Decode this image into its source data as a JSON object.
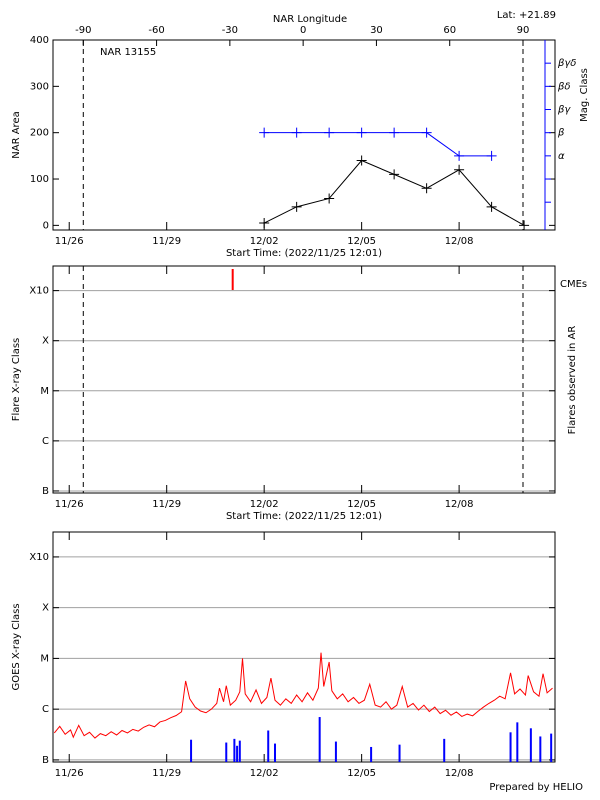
{
  "credit": "Prepared by HELIO",
  "chart_data": [
    {
      "type": "line",
      "title": "NAR 13155",
      "subtitle": "Lat: +21.89",
      "x2label": "NAR Longitude",
      "xlabel": "Start Time: (2022/11/25 12:01)",
      "ylabel": "NAR Area",
      "y2label": "Mag. Class",
      "xlim": [
        "11/25 12:01",
        "12/10 22:50"
      ],
      "xticks": [
        "11/26",
        "11/29",
        "12/02",
        "12/05",
        "12/08"
      ],
      "x2lim": [
        -102.4,
        103.1
      ],
      "x2ticks": [
        -90,
        -60,
        -30,
        0,
        30,
        60,
        90
      ],
      "ylim": [
        -10,
        400
      ],
      "yticks": [
        0,
        100,
        200,
        300,
        400
      ],
      "y2lim": [
        -10,
        400
      ],
      "y2color": "#0000ff",
      "y2ticks": [
        {
          "value": 50,
          "label": null
        },
        {
          "value": 100,
          "label": null
        },
        {
          "value": 150,
          "label": "α"
        },
        {
          "value": 200,
          "label": "β"
        },
        {
          "value": 250,
          "label": "βγ"
        },
        {
          "value": 300,
          "label": "βδ"
        },
        {
          "value": 350,
          "label": "βγδ"
        }
      ],
      "series": [
        {
          "color": "#000000",
          "x": [
            "12/02",
            "12/03",
            "12/04",
            "12/05",
            "12/06",
            "12/07",
            "12/08",
            "12/09",
            "12/10"
          ],
          "values": [
            5,
            40,
            58,
            140,
            110,
            80,
            120,
            40,
            0
          ]
        },
        {
          "color": "#0000ff",
          "axis": "y2",
          "x": [
            "12/02",
            "12/03",
            "12/04",
            "12/05",
            "12/06",
            "12/07",
            "12/08",
            "12/09"
          ],
          "values": [
            200,
            200,
            200,
            200,
            200,
            200,
            150,
            150
          ]
        }
      ]
    },
    {
      "type": "flares",
      "xlabel": "Start Time: (2022/11/25 12:01)",
      "ylabel": "Flare X-ray Class",
      "y2label": "Flares observed in AR",
      "xlim": [
        "11/25 12:01",
        "12/10 22:50"
      ],
      "xticks": [
        "11/26",
        "11/29",
        "12/02",
        "12/05",
        "12/08"
      ],
      "ylim": [
        9.1e-08,
        0.0031
      ],
      "log_scale": true,
      "grid": true,
      "yticks": [
        {
          "value": 1e-07,
          "label": "B"
        },
        {
          "value": 1e-06,
          "label": "C"
        },
        {
          "value": 1e-05,
          "label": "M"
        },
        {
          "value": 0.0001,
          "label": "X"
        },
        {
          "value": 0.001,
          "label": "X10"
        }
      ],
      "series": [
        {
          "name": "CMEs",
          "color": "#ff0000",
          "x": [
            "12/01 00:45"
          ]
        }
      ]
    },
    {
      "type": "timeseries",
      "ylabel": "GOES X-ray Class",
      "xlim": [
        "11/25 12:01",
        "12/10 22:50"
      ],
      "xticks": [
        "11/26",
        "11/29",
        "12/02",
        "12/05",
        "12/08"
      ],
      "ylim": [
        9.1e-08,
        0.0031
      ],
      "log_scale": true,
      "grid": true,
      "yticks": [
        {
          "value": 1e-07,
          "label": "B"
        },
        {
          "value": 1e-06,
          "label": "C"
        },
        {
          "value": 1e-05,
          "label": "M"
        },
        {
          "value": 0.0001,
          "label": "X"
        },
        {
          "value": 0.001,
          "label": "X10"
        }
      ],
      "series": [
        {
          "style": "line",
          "color": "#ff0000",
          "x": [
            "11/25 13:00",
            "11/25 17:00",
            "11/25 21:00",
            "11/26 01:00",
            "11/26 03:00",
            "11/26 07:00",
            "11/26 11:00",
            "11/26 15:00",
            "11/26 19:00",
            "11/26 23:00",
            "11/27 03:00",
            "11/27 07:00",
            "11/27 11:00",
            "11/27 15:00",
            "11/27 19:00",
            "11/27 23:00",
            "11/28 03:00",
            "11/28 07:00",
            "11/28 11:00",
            "11/28 15:00",
            "11/28 19:00",
            "11/28 23:00",
            "11/29 03:00",
            "11/29 07:00",
            "11/29 11:00",
            "11/29 14:00",
            "11/29 17:00",
            "11/29 21:00",
            "11/30 01:00",
            "11/30 05:00",
            "11/30 09:00",
            "11/30 13:00",
            "11/30 15:00",
            "11/30 18:00",
            "11/30 20:00",
            "11/30 23:00",
            "12/01 03:00",
            "12/01 06:00",
            "12/01 08:00",
            "12/01 10:00",
            "12/01 14:00",
            "12/01 18:00",
            "12/01 22:00",
            "12/02 02:00",
            "12/02 05:00",
            "12/02 08:00",
            "12/02 12:00",
            "12/02 16:00",
            "12/02 20:00",
            "12/03 00:00",
            "12/03 04:00",
            "12/03 08:00",
            "12/03 12:00",
            "12/03 16:00",
            "12/03 18:00",
            "12/03 20:00",
            "12/04 00:00",
            "12/04 02:00",
            "12/04 06:00",
            "12/04 10:00",
            "12/04 14:00",
            "12/04 18:00",
            "12/04 22:00",
            "12/05 02:00",
            "12/05 06:00",
            "12/05 10:00",
            "12/05 14:00",
            "12/05 18:00",
            "12/05 22:00",
            "12/06 02:00",
            "12/06 06:00",
            "12/06 10:00",
            "12/06 14:00",
            "12/06 18:00",
            "12/06 22:00",
            "12/07 02:00",
            "12/07 06:00",
            "12/07 10:00",
            "12/07 14:00",
            "12/07 18:00",
            "12/07 22:00",
            "12/08 02:00",
            "12/08 06:00",
            "12/08 10:00",
            "12/08 14:00",
            "12/08 18:00",
            "12/08 22:00",
            "12/09 02:00",
            "12/09 06:00",
            "12/09 10:00",
            "12/09 14:00",
            "12/09 17:00",
            "12/09 21:00",
            "12/10 01:00",
            "12/10 03:00",
            "12/10 07:00",
            "12/10 11:00",
            "12/10 14:00",
            "12/10 17:00",
            "12/10 21:00"
          ],
          "values": [
            3.4e-07,
            4.6e-07,
            3.2e-07,
            3.9e-07,
            2.8e-07,
            4.8e-07,
            3e-07,
            3.5e-07,
            2.7e-07,
            3.3e-07,
            3e-07,
            3.6e-07,
            3.1e-07,
            3.8e-07,
            3.4e-07,
            4e-07,
            3.7e-07,
            4.4e-07,
            4.9e-07,
            4.5e-07,
            5.6e-07,
            6e-07,
            6.8e-07,
            7.5e-07,
            8.9e-07,
            3.6e-06,
            1.6e-06,
            1.1e-06,
            9.2e-07,
            8.5e-07,
            1e-06,
            1.3e-06,
            2.6e-06,
            1.4e-06,
            2.9e-06,
            1.2e-06,
            1.5e-06,
            2.2e-06,
            1e-05,
            2e-06,
            1.4e-06,
            2.4e-06,
            1.3e-06,
            1.7e-06,
            4.1e-06,
            1.5e-06,
            1.2e-06,
            1.6e-06,
            1.3e-06,
            1.9e-06,
            1.4e-06,
            2.1e-06,
            1.5e-06,
            2.6e-06,
            1.3e-05,
            2.8e-06,
            8.5e-06,
            2.3e-06,
            1.6e-06,
            2e-06,
            1.4e-06,
            1.7e-06,
            1.3e-06,
            1.5e-06,
            3.1e-06,
            1.2e-06,
            1.1e-06,
            1.4e-06,
            1e-06,
            1.2e-06,
            2.8e-06,
            1.1e-06,
            1.3e-06,
            9.6e-07,
            1.2e-06,
            9e-07,
            1.1e-06,
            8.2e-07,
            9.5e-07,
            7.6e-07,
            8.8e-07,
            7.2e-07,
            8e-07,
            7.4e-07,
            9.1e-07,
            1.1e-06,
            1.3e-06,
            1.5e-06,
            1.8e-06,
            1.6e-06,
            5.2e-06,
            2e-06,
            2.5e-06,
            1.9e-06,
            4.6e-06,
            2.2e-06,
            1.8e-06,
            5e-06,
            2.1e-06,
            2.6e-06
          ]
        },
        {
          "style": "bar",
          "color": "#0000ff",
          "x": [
            "11/29 18:00",
            "11/30 20:00",
            "12/01 02:00",
            "12/01 04:00",
            "12/01 06:00",
            "12/02 03:00",
            "12/02 08:00",
            "12/03 17:00",
            "12/04 05:00",
            "12/05 07:00",
            "12/06 04:00",
            "12/07 13:00",
            "12/09 14:00",
            "12/09 19:00",
            "12/10 05:00",
            "12/10 12:00",
            "12/10 20:00"
          ],
          "values": [
            2.5e-07,
            2.2e-07,
            2.6e-07,
            1.9e-07,
            2.4e-07,
            3.8e-07,
            2.1e-07,
            7e-07,
            2.3e-07,
            1.8e-07,
            2e-07,
            2.6e-07,
            3.5e-07,
            5.5e-07,
            4.2e-07,
            2.9e-07,
            3.3e-07
          ]
        }
      ]
    }
  ]
}
